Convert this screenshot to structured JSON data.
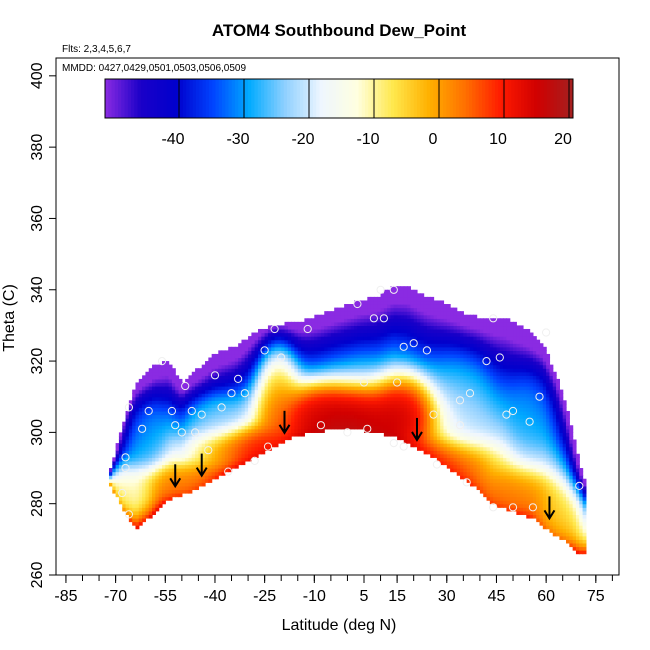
{
  "chart_data": {
    "type": "heatmap",
    "title": "ATOM4 Southbound Dew_Point",
    "flights_note": "Flts: 2,3,4,5,6,7",
    "dates_note": "MMDD: 0427,0429,0501,0503,0506,0509",
    "xlabel": "Latitude (deg N)",
    "ylabel": "Theta (C)",
    "xlim": [
      -88,
      82
    ],
    "ylim": [
      260,
      405
    ],
    "x_ticks": [
      -85,
      -70,
      -55,
      -40,
      -25,
      -10,
      5,
      15,
      30,
      45,
      60,
      75
    ],
    "x_minor_step": 5,
    "y_ticks": [
      260,
      280,
      300,
      320,
      340,
      360,
      380,
      400
    ],
    "colorbar": {
      "range": [
        -50,
        22
      ],
      "ticks": [
        -40,
        -30,
        -20,
        -10,
        0,
        10,
        20
      ],
      "colors": [
        "#8a2be2",
        "#1a00c8",
        "#0000cd",
        "#0044ff",
        "#00aaff",
        "#8fd0ff",
        "#eef6ff",
        "#ffffe0",
        "#ffe84d",
        "#ffb000",
        "#ff7000",
        "#ff1a00",
        "#d00000",
        "#a52020"
      ]
    },
    "domain_top": [
      [
        -72,
        288
      ],
      [
        -68,
        302
      ],
      [
        -64,
        313
      ],
      [
        -58,
        319
      ],
      [
        -54,
        320
      ],
      [
        -50,
        314
      ],
      [
        -45,
        318
      ],
      [
        -40,
        322
      ],
      [
        -34,
        324
      ],
      [
        -28,
        328
      ],
      [
        -22,
        330
      ],
      [
        -15,
        331
      ],
      [
        -8,
        333
      ],
      [
        -2,
        335
      ],
      [
        4,
        337
      ],
      [
        9,
        338
      ],
      [
        14,
        341
      ],
      [
        18,
        341
      ],
      [
        24,
        338
      ],
      [
        30,
        336
      ],
      [
        36,
        333
      ],
      [
        42,
        332
      ],
      [
        48,
        332
      ],
      [
        54,
        329
      ],
      [
        59,
        325
      ],
      [
        63,
        316
      ],
      [
        66,
        308
      ],
      [
        68,
        300
      ],
      [
        70,
        292
      ],
      [
        72,
        285
      ]
    ],
    "domain_bottom": [
      [
        -72,
        286
      ],
      [
        -68,
        279
      ],
      [
        -64,
        273
      ],
      [
        -60,
        276
      ],
      [
        -56,
        280
      ],
      [
        -52,
        282
      ],
      [
        -48,
        283
      ],
      [
        -44,
        285
      ],
      [
        -40,
        287
      ],
      [
        -34,
        290
      ],
      [
        -28,
        293
      ],
      [
        -22,
        296
      ],
      [
        -16,
        299
      ],
      [
        -10,
        300
      ],
      [
        -4,
        301
      ],
      [
        2,
        301
      ],
      [
        8,
        300
      ],
      [
        14,
        299
      ],
      [
        20,
        296
      ],
      [
        26,
        293
      ],
      [
        32,
        289
      ],
      [
        38,
        285
      ],
      [
        44,
        280
      ],
      [
        50,
        278
      ],
      [
        56,
        276
      ],
      [
        60,
        273
      ],
      [
        65,
        270
      ],
      [
        70,
        266
      ],
      [
        72,
        266
      ]
    ],
    "field_hotspots": [
      {
        "lat": 5,
        "theta": 305,
        "value": 22,
        "rx": 17,
        "ry": 6
      },
      {
        "lat": -8,
        "theta": 306,
        "value": 20,
        "rx": 10,
        "ry": 6
      },
      {
        "lat": 17,
        "theta": 307,
        "value": 19,
        "rx": 7,
        "ry": 7
      },
      {
        "lat": -21,
        "theta": 309,
        "value": 8,
        "rx": 5,
        "ry": 12
      },
      {
        "lat": -30,
        "theta": 297,
        "value": 14,
        "rx": 12,
        "ry": 4
      },
      {
        "lat": -50,
        "theta": 286,
        "value": 5,
        "rx": 9,
        "ry": 4
      },
      {
        "lat": 30,
        "theta": 292,
        "value": 12,
        "rx": 10,
        "ry": 5
      },
      {
        "lat": 50,
        "theta": 283,
        "value": 4,
        "rx": 10,
        "ry": 5
      },
      {
        "lat": 65,
        "theta": 276,
        "value": -4,
        "rx": 6,
        "ry": 6
      },
      {
        "lat": -66,
        "theta": 283,
        "value": -10,
        "rx": 5,
        "ry": 5
      },
      {
        "lat": 35,
        "theta": 308,
        "value": -22,
        "rx": 8,
        "ry": 12
      },
      {
        "lat": -40,
        "theta": 303,
        "value": -22,
        "rx": 8,
        "ry": 6
      },
      {
        "lat": 55,
        "theta": 305,
        "value": -28,
        "rx": 6,
        "ry": 10
      },
      {
        "lat": -60,
        "theta": 300,
        "value": -28,
        "rx": 5,
        "ry": 8
      }
    ],
    "observations": [
      [
        -68,
        283
      ],
      [
        -67,
        290
      ],
      [
        -67,
        293
      ],
      [
        -66,
        307
      ],
      [
        -66,
        277
      ],
      [
        -62,
        301
      ],
      [
        -60,
        306
      ],
      [
        -56,
        320
      ],
      [
        -53,
        306
      ],
      [
        -52,
        302
      ],
      [
        -50,
        300
      ],
      [
        -49,
        313
      ],
      [
        -47,
        306
      ],
      [
        -46,
        300
      ],
      [
        -44,
        305
      ],
      [
        -42,
        295
      ],
      [
        -40,
        316
      ],
      [
        -38,
        307
      ],
      [
        -36,
        289
      ],
      [
        -35,
        311
      ],
      [
        -33,
        315
      ],
      [
        -31,
        311
      ],
      [
        -28,
        292
      ],
      [
        -25,
        323
      ],
      [
        -24,
        296
      ],
      [
        -22,
        329
      ],
      [
        -20,
        321
      ],
      [
        -12,
        329
      ],
      [
        -8,
        302
      ],
      [
        0,
        300
      ],
      [
        3,
        336
      ],
      [
        5,
        314
      ],
      [
        6,
        301
      ],
      [
        8,
        332
      ],
      [
        10,
        340
      ],
      [
        11,
        332
      ],
      [
        14,
        340
      ],
      [
        14,
        297
      ],
      [
        15,
        314
      ],
      [
        17,
        296
      ],
      [
        17,
        324
      ],
      [
        20,
        325
      ],
      [
        24,
        323
      ],
      [
        26,
        305
      ],
      [
        27,
        291
      ],
      [
        34,
        309
      ],
      [
        34,
        302
      ],
      [
        36,
        286
      ],
      [
        37,
        311
      ],
      [
        42,
        320
      ],
      [
        44,
        279
      ],
      [
        44,
        332
      ],
      [
        46,
        321
      ],
      [
        48,
        305
      ],
      [
        50,
        279
      ],
      [
        50,
        306
      ],
      [
        55,
        303
      ],
      [
        56,
        279
      ],
      [
        58,
        310
      ],
      [
        60,
        328
      ],
      [
        70,
        285
      ]
    ],
    "arrows": [
      {
        "lat": -52,
        "theta": 286,
        "direction": "down"
      },
      {
        "lat": -44,
        "theta": 289,
        "direction": "down"
      },
      {
        "lat": -19,
        "theta": 301,
        "direction": "down"
      },
      {
        "lat": 21,
        "theta": 299,
        "direction": "down"
      },
      {
        "lat": 61,
        "theta": 277,
        "direction": "down"
      }
    ]
  }
}
